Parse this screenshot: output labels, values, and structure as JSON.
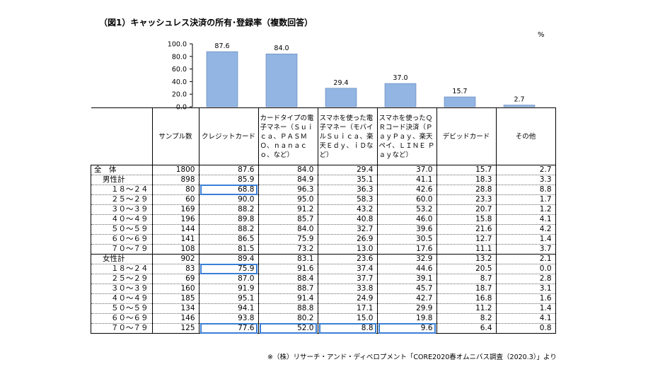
{
  "title": "（図1）キャッシュレス決済の所有･登録率（複数回答）",
  "unit": "%",
  "note": "※（株）リサーチ・アンド・ディベロプメント「CORE2020春オムニバス調査（2020.3）」より",
  "chart_data": {
    "type": "bar",
    "title": "（図1）キャッシュレス決済の所有･登録率（複数回答）",
    "categories": [
      "クレジットカード",
      "カードタイプの電子マネー（Ｓｕｉｃａ、ＰＡＳＭＯ、ｎａｎａｃｏ、など）",
      "スマホを使った電子マネー（モバイルＳｕｉｃａ、楽天Ｅｄｙ、ｉＤなど）",
      "スマホを使ったＱＲコード決済（ＰａｙＰａｙ、楽天ペイ、ＬＩＮＥ Ｐａｙなど）",
      "デビッドカード",
      "その他"
    ],
    "values": [
      87.6,
      84.0,
      29.4,
      37.0,
      15.7,
      2.7
    ],
    "value_labels": [
      "87.6",
      "84.0",
      "29.4",
      "37.0",
      "15.7",
      "2.7"
    ],
    "ylim": [
      0,
      100
    ],
    "yticks": [
      "0.0",
      "20.0",
      "40.0",
      "60.0",
      "80.0",
      "100.0"
    ],
    "bar_color": "#92b5e3",
    "grid": false
  },
  "table": {
    "sample_header": "サンプル数",
    "headers": [
      "クレジットカード",
      "カードタイプの電子マネー（Ｓｕｉｃａ、ＰＡＳＭＯ、ｎａｎａｃｏ、など）",
      "スマホを使った電子マネー（モバイルＳｕｉｃａ、楽天Ｅｄｙ、ｉＤなど）",
      "スマホを使ったＱＲコード決済（ＰａｙＰａｙ、楽天ペイ、ＬＩＮＥ Ｐａｙなど）",
      "デビッドカード",
      "その他"
    ],
    "highlight_color": "#3b7fd6",
    "rows": [
      {
        "label": "全　体",
        "n": "1800",
        "values": [
          "87.6",
          "84.0",
          "29.4",
          "37.0",
          "15.7",
          "2.7"
        ],
        "boxed": [],
        "indent": 0,
        "line": "solid"
      },
      {
        "label": "男性計",
        "n": "898",
        "values": [
          "85.9",
          "84.9",
          "35.1",
          "41.1",
          "18.3",
          "3.3"
        ],
        "boxed": [],
        "indent": 1,
        "line": "dotted"
      },
      {
        "label": "１８～２４",
        "n": "80",
        "values": [
          "68.8",
          "96.3",
          "36.3",
          "42.6",
          "28.8",
          "8.8"
        ],
        "boxed": [
          0
        ],
        "indent": 2,
        "line": "dotted"
      },
      {
        "label": "２５～２９",
        "n": "60",
        "values": [
          "90.0",
          "95.0",
          "58.3",
          "60.0",
          "23.3",
          "1.7"
        ],
        "boxed": [],
        "indent": 2,
        "line": "dotted"
      },
      {
        "label": "３０～３９",
        "n": "169",
        "values": [
          "88.2",
          "91.2",
          "43.2",
          "53.2",
          "20.7",
          "1.2"
        ],
        "boxed": [],
        "indent": 2,
        "line": "dotted"
      },
      {
        "label": "４０～４９",
        "n": "196",
        "values": [
          "89.8",
          "85.7",
          "40.8",
          "46.0",
          "15.8",
          "4.1"
        ],
        "boxed": [],
        "indent": 2,
        "line": "dotted"
      },
      {
        "label": "５０～５９",
        "n": "144",
        "values": [
          "88.2",
          "84.0",
          "32.7",
          "39.6",
          "21.6",
          "4.2"
        ],
        "boxed": [],
        "indent": 2,
        "line": "dotted"
      },
      {
        "label": "６０～６９",
        "n": "141",
        "values": [
          "86.5",
          "75.9",
          "26.9",
          "30.5",
          "12.7",
          "1.4"
        ],
        "boxed": [],
        "indent": 2,
        "line": "dotted"
      },
      {
        "label": "７０～７９",
        "n": "108",
        "values": [
          "81.5",
          "73.2",
          "13.0",
          "17.6",
          "11.1",
          "3.7"
        ],
        "boxed": [],
        "indent": 2,
        "line": "dotted"
      },
      {
        "label": "女性計",
        "n": "902",
        "values": [
          "89.4",
          "83.1",
          "23.6",
          "32.9",
          "13.2",
          "2.1"
        ],
        "boxed": [],
        "indent": 1,
        "line": "solid"
      },
      {
        "label": "１８～２４",
        "n": "83",
        "values": [
          "75.9",
          "91.6",
          "37.4",
          "44.6",
          "20.5",
          "0.0"
        ],
        "boxed": [
          0
        ],
        "indent": 2,
        "line": "dotted"
      },
      {
        "label": "２５～２９",
        "n": "69",
        "values": [
          "87.0",
          "88.4",
          "37.7",
          "39.1",
          "8.7",
          "2.8"
        ],
        "boxed": [],
        "indent": 2,
        "line": "dotted"
      },
      {
        "label": "３０～３９",
        "n": "160",
        "values": [
          "91.9",
          "88.7",
          "33.8",
          "45.7",
          "18.7",
          "3.1"
        ],
        "boxed": [],
        "indent": 2,
        "line": "dotted"
      },
      {
        "label": "４０～４９",
        "n": "185",
        "values": [
          "95.1",
          "91.4",
          "24.9",
          "42.7",
          "16.8",
          "1.6"
        ],
        "boxed": [],
        "indent": 2,
        "line": "dotted"
      },
      {
        "label": "５０～５９",
        "n": "134",
        "values": [
          "94.1",
          "88.8",
          "17.1",
          "29.9",
          "11.2",
          "1.4"
        ],
        "boxed": [],
        "indent": 2,
        "line": "dotted"
      },
      {
        "label": "６０～６９",
        "n": "146",
        "values": [
          "93.8",
          "80.2",
          "15.0",
          "19.8",
          "8.2",
          "4.1"
        ],
        "boxed": [],
        "indent": 2,
        "line": "dotted"
      },
      {
        "label": "７０～７９",
        "n": "125",
        "values": [
          "77.6",
          "52.0",
          "8.8",
          "9.6",
          "6.4",
          "0.8"
        ],
        "boxed": [
          0,
          1,
          2,
          3
        ],
        "indent": 2,
        "line": "dotted"
      }
    ]
  }
}
